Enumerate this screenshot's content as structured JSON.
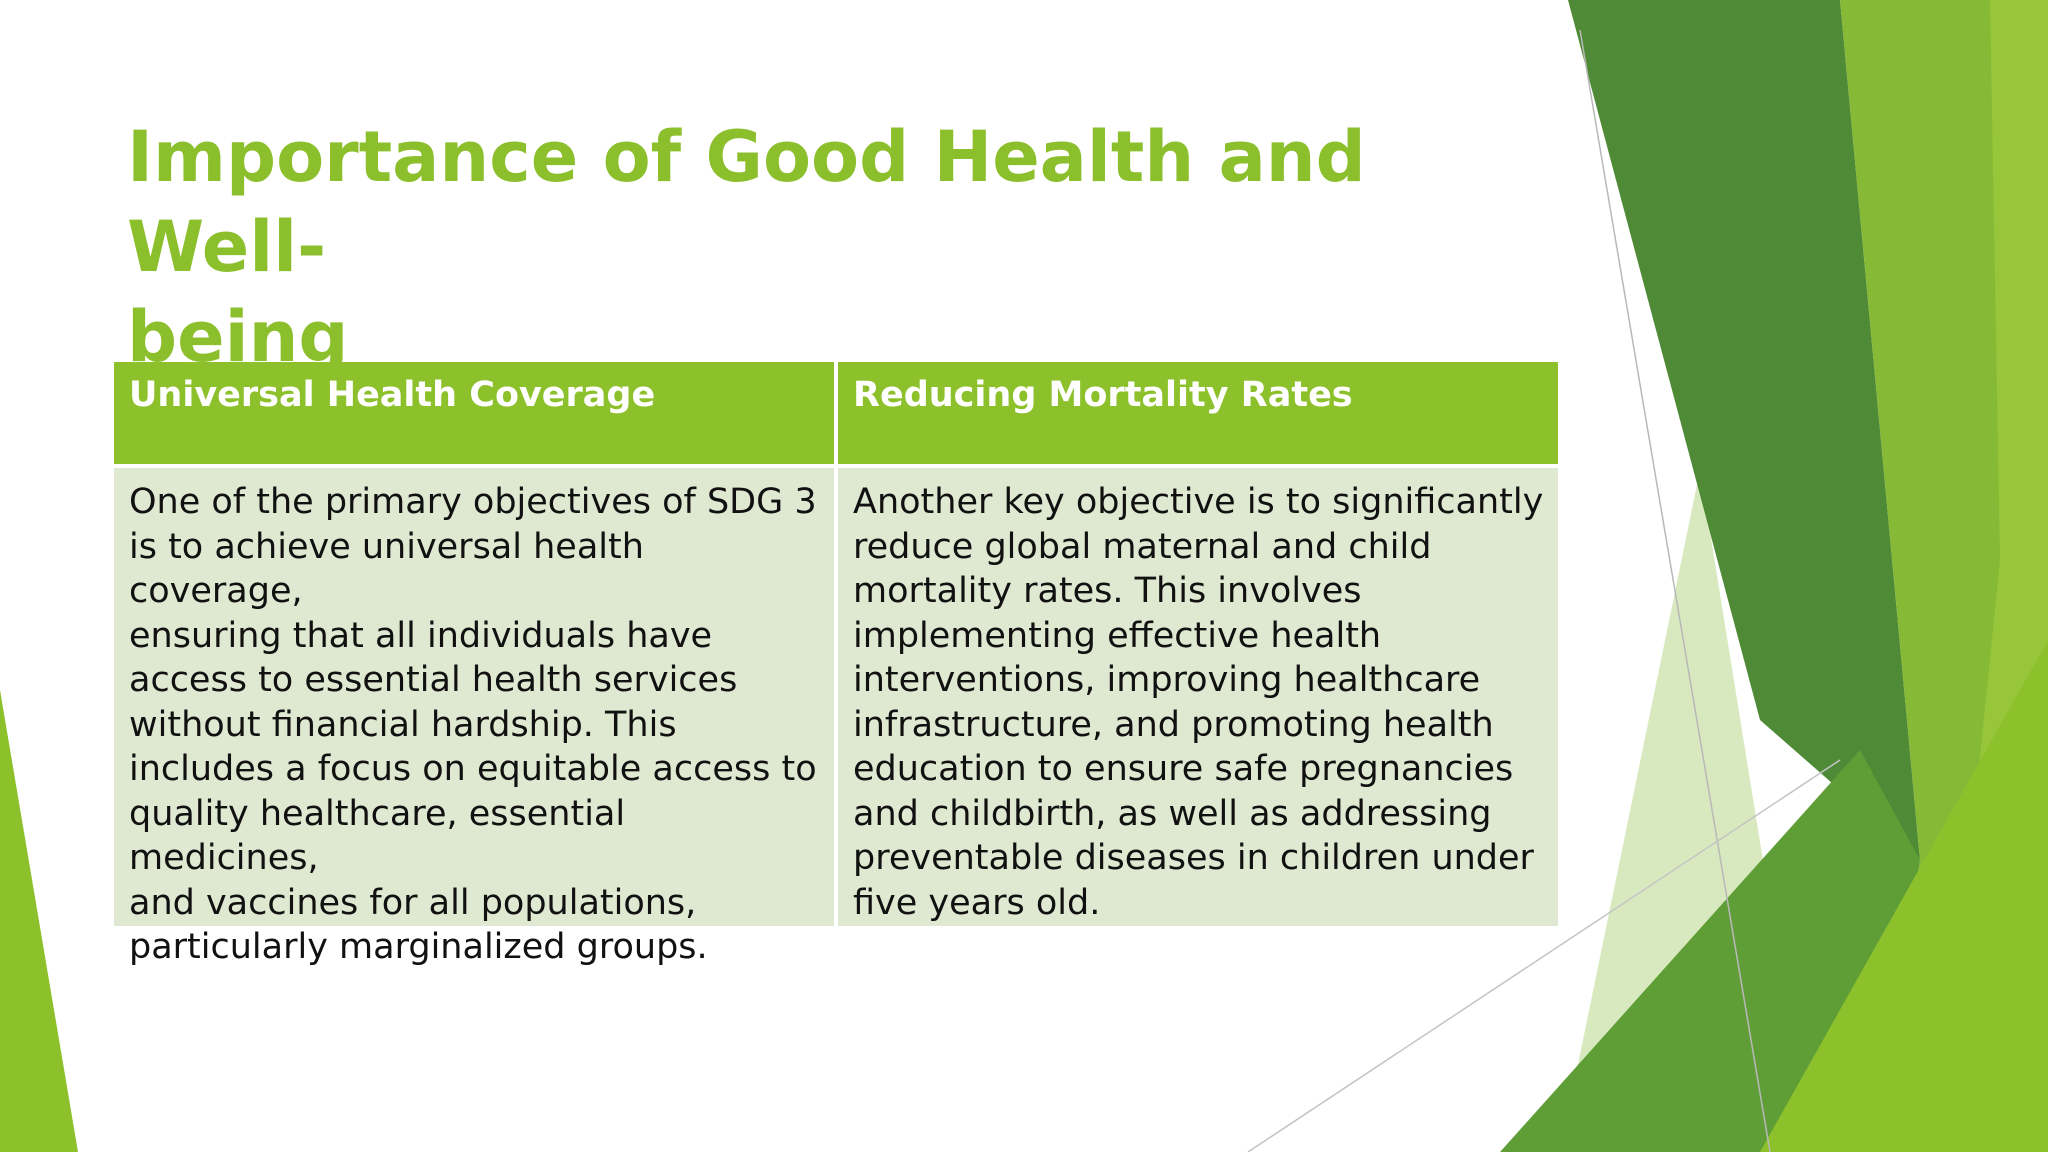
{
  "slide": {
    "title": "Importance of Good Health and Well-\nbeing"
  },
  "table": {
    "headers": [
      "Universal Health Coverage",
      "Reducing Mortality Rates"
    ],
    "cells": [
      "One of the primary objectives of SDG 3\nis to achieve universal health coverage,\nensuring that all individuals have\naccess to essential health services\nwithout financial hardship. This\nincludes a focus on equitable access to\nquality healthcare, essential medicines,\nand vaccines for all populations,\nparticularly marginalized groups.",
      "Another key objective is to significantly\nreduce global maternal and child\nmortality rates. This involves\nimplementing effective health\ninterventions, improving healthcare\ninfrastructure, and promoting health\neducation to ensure safe pregnancies\nand childbirth, as well as addressing\npreventable diseases in children under\nfive years old."
    ]
  },
  "colors": {
    "title": "#8cbf2c",
    "header_fill": "#8dc12c",
    "cell_fill": "#dfe9d2",
    "decor_dark": "#4e8a35",
    "decor_light": "#8dc12c"
  }
}
